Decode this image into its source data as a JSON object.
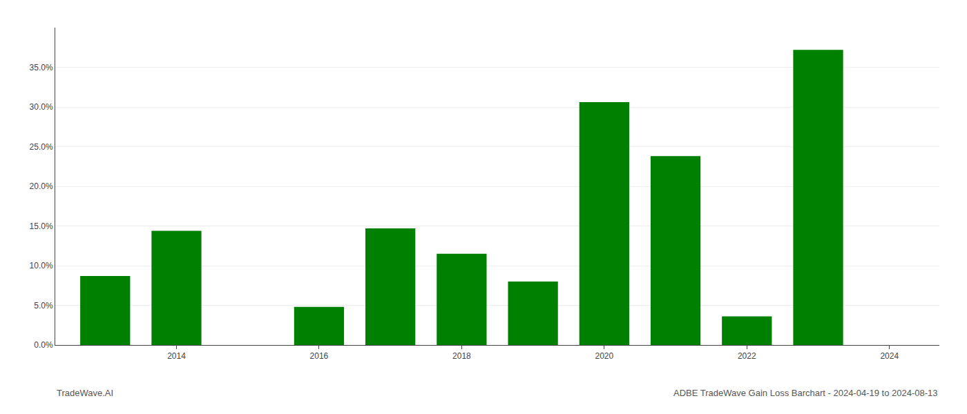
{
  "chart_data": {
    "type": "bar",
    "x": [
      2013,
      2014,
      2016,
      2017,
      2018,
      2019,
      2020,
      2021,
      2022,
      2023
    ],
    "values": [
      0.087,
      0.144,
      0.048,
      0.147,
      0.115,
      0.08,
      0.306,
      0.238,
      0.036,
      0.372
    ],
    "color": "#008000",
    "xlim": [
      2012.3,
      2024.7
    ],
    "xticks": [
      2014,
      2016,
      2018,
      2020,
      2022,
      2024
    ],
    "ylim": [
      0,
      0.4
    ],
    "yticks": [
      {
        "value": 0.0,
        "label": "0.0%"
      },
      {
        "value": 0.05,
        "label": "5.0%"
      },
      {
        "value": 0.1,
        "label": "10.0%"
      },
      {
        "value": 0.15,
        "label": "15.0%"
      },
      {
        "value": 0.2,
        "label": "20.0%"
      },
      {
        "value": 0.25,
        "label": "25.0%"
      },
      {
        "value": 0.3,
        "label": "30.0%"
      },
      {
        "value": 0.35,
        "label": "35.0%"
      }
    ],
    "grid": true,
    "annotations": [
      "TradeWave.AI",
      "ADBE TradeWave Gain Loss Barchart - 2024-04-19 to 2024-08-13"
    ]
  }
}
